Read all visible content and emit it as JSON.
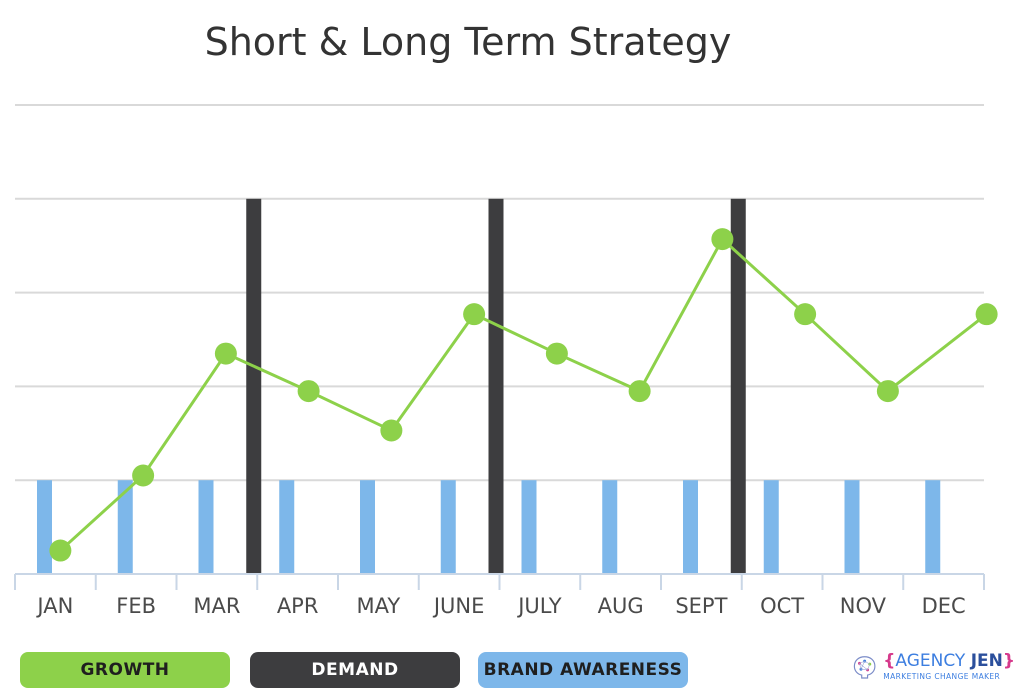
{
  "chart_data": {
    "type": "bar+line",
    "title": "Short & Long Term Strategy",
    "categories": [
      "JAN",
      "FEB",
      "MAR",
      "APR",
      "MAY",
      "JUNE",
      "JULY",
      "AUG",
      "SEPT",
      "OCT",
      "NOV",
      "DEC"
    ],
    "ylim": [
      0,
      5
    ],
    "grid": true,
    "series": [
      {
        "name": "GROWTH",
        "type": "line",
        "color": "#8dd14a",
        "values": [
          0.25,
          1.05,
          2.35,
          1.95,
          1.53,
          2.77,
          2.35,
          1.95,
          3.57,
          2.77,
          1.95,
          2.77
        ]
      },
      {
        "name": "DEMAND",
        "type": "bar",
        "color": "#3d3d3f",
        "values": [
          null,
          null,
          4,
          null,
          null,
          4,
          null,
          null,
          4,
          null,
          null,
          null
        ]
      },
      {
        "name": "BRAND AWARENESS",
        "type": "bar",
        "color": "#7db7ea",
        "values": [
          1,
          1,
          1,
          1,
          1,
          1,
          1,
          1,
          1,
          1,
          1,
          1
        ]
      }
    ],
    "legend_position": "bottom"
  },
  "legend": {
    "growth": {
      "label": "GROWTH",
      "color": "#8dd14a",
      "text_color": "#1f1f1f"
    },
    "demand": {
      "label": "DEMAND",
      "color": "#3d3d3f",
      "text_color": "#ffffff"
    },
    "brand": {
      "label": "BRAND AWARENESS",
      "color": "#7db7ea",
      "text_color": "#1f1f1f"
    }
  },
  "logo": {
    "brace_open": "{",
    "name_part1": "AGENCY ",
    "name_part2": "JEN",
    "brace_close": "}",
    "tagline": "MARKETING CHANGE MAKER",
    "icon": "brain-icon"
  }
}
